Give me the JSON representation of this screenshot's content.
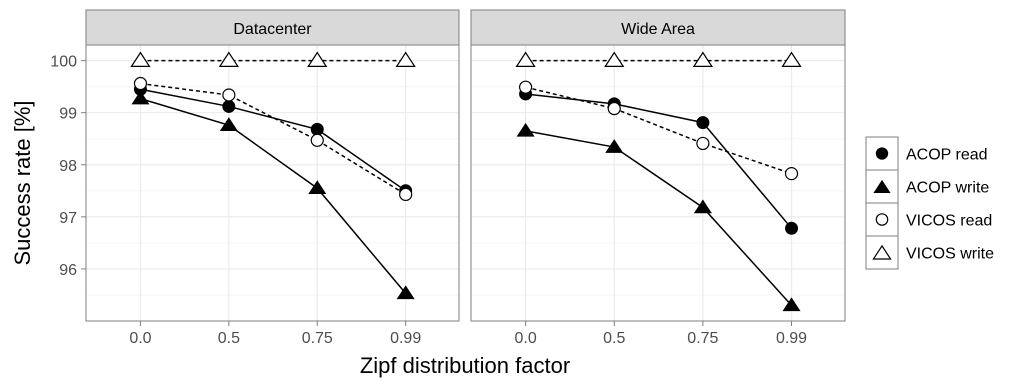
{
  "chart_data": {
    "type": "line",
    "xlabel": "Zipf distribution factor",
    "ylabel": "Success rate [%]",
    "categories": [
      "0.0",
      "0.5",
      "0.75",
      "0.99"
    ],
    "ylim": [
      95,
      100.3
    ],
    "yticks": [
      96,
      97,
      98,
      99,
      100
    ],
    "grid": true,
    "legend_position": "right",
    "panels": [
      {
        "title": "Datacenter",
        "series": [
          {
            "name": "ACOP read",
            "marker": "circle-filled",
            "linestyle": "solid",
            "values": [
              99.45,
              99.12,
              98.68,
              97.5
            ]
          },
          {
            "name": "ACOP write",
            "marker": "triangle-filled",
            "linestyle": "solid",
            "values": [
              99.27,
              98.76,
              97.55,
              95.53
            ]
          },
          {
            "name": "VICOS read",
            "marker": "circle-open",
            "linestyle": "dashed",
            "values": [
              99.56,
              99.34,
              98.47,
              97.43
            ]
          },
          {
            "name": "VICOS write",
            "marker": "triangle-open",
            "linestyle": "dashed",
            "values": [
              100,
              100,
              100,
              100
            ]
          }
        ]
      },
      {
        "title": "Wide Area",
        "series": [
          {
            "name": "ACOP read",
            "marker": "circle-filled",
            "linestyle": "solid",
            "values": [
              99.36,
              99.17,
              98.81,
              96.78
            ]
          },
          {
            "name": "ACOP write",
            "marker": "triangle-filled",
            "linestyle": "solid",
            "values": [
              98.65,
              98.34,
              97.18,
              95.3
            ]
          },
          {
            "name": "VICOS read",
            "marker": "circle-open",
            "linestyle": "dashed",
            "values": [
              99.49,
              99.08,
              98.41,
              97.83
            ]
          },
          {
            "name": "VICOS write",
            "marker": "triangle-open",
            "linestyle": "dashed",
            "values": [
              100,
              100,
              100,
              100
            ]
          }
        ]
      }
    ]
  },
  "colors": {
    "strip_fill": "#d9d9d9",
    "panel_border": "#7f7f7f",
    "grid_major": "#ebebeb",
    "grid_minor": "#f5f5f5",
    "ink": "#000000",
    "tick_text": "#4d4d4d"
  }
}
